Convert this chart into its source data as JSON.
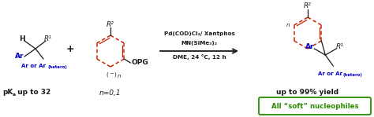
{
  "bg_color": "#ffffff",
  "red_color": "#cc2200",
  "blue_color": "#0000cc",
  "green_color": "#2a8c00",
  "black_color": "#1a1a1a",
  "figsize": [
    4.74,
    1.49
  ],
  "dpi": 100,
  "reagent_line1": "Pd(COD)Cl₂/ Xantphos",
  "reagent_line2": "MN(SiMe₃)₂",
  "reagent_line3": "DME, 24 °C, 12 h",
  "n_label": "n=0,1",
  "product_yield": "up to 99% yield",
  "soft_nuc_text": "All “soft” nucleophiles"
}
